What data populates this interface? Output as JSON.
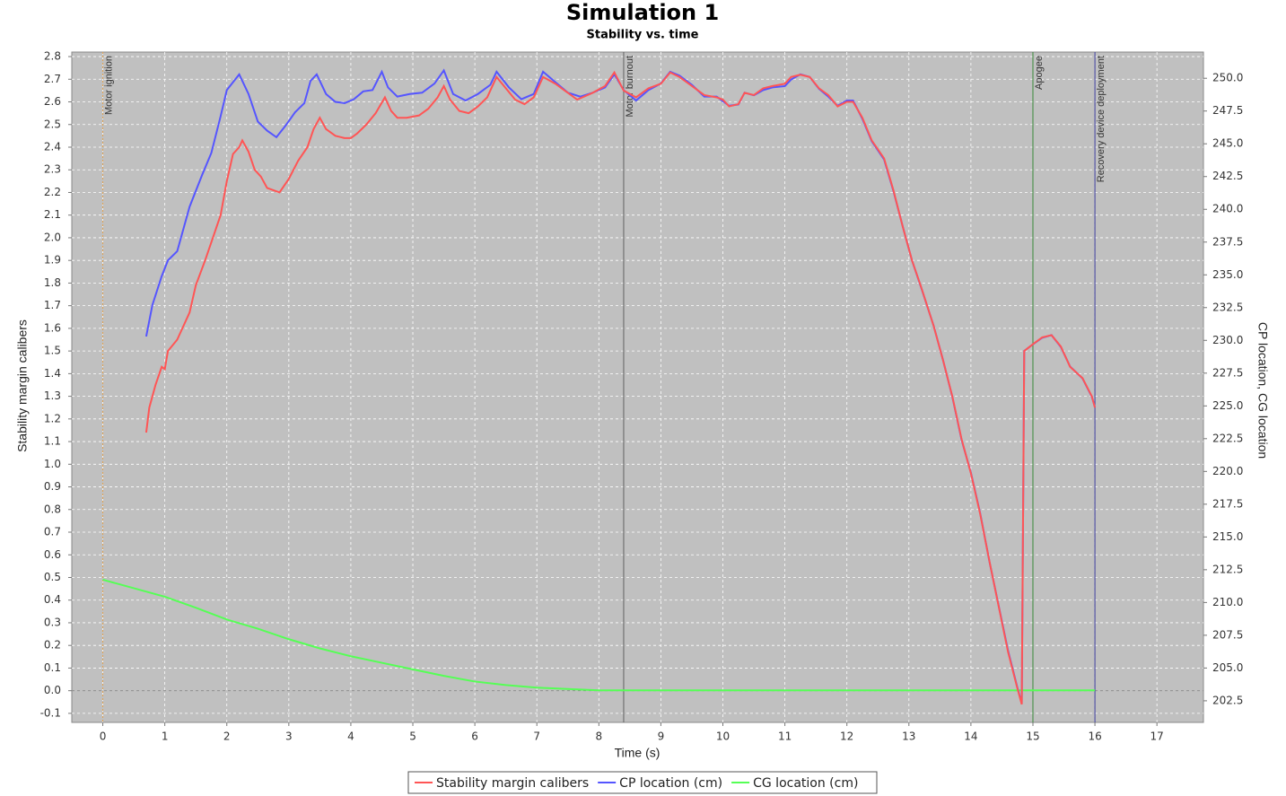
{
  "chart_data": {
    "type": "line",
    "title": "Simulation 1",
    "subtitle": "Stability vs. time",
    "x_label": "Time (s)",
    "y_label": "Stability margin calibers",
    "y2_label": "CP location, CG location",
    "xlim": [
      -0.5,
      17.75
    ],
    "xticks": [
      0,
      1,
      2,
      3,
      4,
      5,
      6,
      7,
      8,
      9,
      10,
      11,
      12,
      13,
      14,
      15,
      16,
      17
    ],
    "ylim": [
      -0.14,
      2.82
    ],
    "yticks": [
      -0.1,
      {
        "value": 0,
        "label": "0.0"
      },
      0.1,
      0.2,
      0.3,
      0.4,
      0.5,
      0.6,
      0.7,
      0.8,
      0.9,
      {
        "value": 1,
        "label": "1.0"
      },
      1.1,
      1.2,
      1.3,
      1.4,
      1.5,
      1.6,
      1.7,
      1.8,
      1.9,
      {
        "value": 2,
        "label": "2.0"
      },
      2.1,
      2.2,
      2.3,
      2.4,
      2.5,
      2.6,
      2.7,
      2.8
    ],
    "y2lim": [
      200.85,
      252.0
    ],
    "y2ticks": [
      202.5,
      {
        "value": 205,
        "label": "205.0"
      },
      207.5,
      {
        "value": 210,
        "label": "210.0"
      },
      212.5,
      {
        "value": 215,
        "label": "215.0"
      },
      217.5,
      {
        "value": 220,
        "label": "220.0"
      },
      222.5,
      {
        "value": 225,
        "label": "225.0"
      },
      227.5,
      {
        "value": 230,
        "label": "230.0"
      },
      232.5,
      {
        "value": 235,
        "label": "235.0"
      },
      237.5,
      {
        "value": 240,
        "label": "240.0"
      },
      242.5,
      {
        "value": 245,
        "label": "245.0"
      },
      247.5,
      {
        "value": 250,
        "label": "250.0"
      }
    ],
    "grid": true,
    "legend": "bottom",
    "series": [
      {
        "name": "Stability margin calibers",
        "color": "#ff5555",
        "x": [
          0.7,
          0.75,
          0.85,
          0.95,
          1.0,
          1.05,
          1.2,
          1.4,
          1.5,
          1.65,
          1.8,
          1.9,
          2.0,
          2.1,
          2.2,
          2.25,
          2.35,
          2.45,
          2.55,
          2.65,
          2.75,
          2.85,
          3.0,
          3.15,
          3.3,
          3.4,
          3.5,
          3.6,
          3.75,
          3.9,
          4.0,
          4.1,
          4.25,
          4.4,
          4.55,
          4.65,
          4.75,
          4.9,
          5.1,
          5.25,
          5.4,
          5.5,
          5.6,
          5.75,
          5.9,
          6.05,
          6.2,
          6.35,
          6.5,
          6.65,
          6.8,
          6.95,
          7.1,
          7.3,
          7.45,
          7.65,
          7.9,
          8.1,
          8.25,
          8.4,
          8.6,
          8.8,
          9.0,
          9.15,
          9.3,
          9.5,
          9.7,
          9.9,
          10.0,
          10.1,
          10.25,
          10.35,
          10.5,
          10.65,
          10.8,
          11.0,
          11.1,
          11.25,
          11.4,
          11.55,
          11.7,
          11.85,
          12.0,
          12.1,
          12.25,
          12.4,
          12.6,
          12.75,
          12.9,
          13.05,
          13.2,
          13.4,
          13.55,
          13.7,
          13.85,
          14.0,
          14.15,
          14.3,
          14.45,
          14.6,
          14.75,
          14.82,
          14.86,
          15.0,
          15.15,
          15.3,
          15.45,
          15.6,
          15.8,
          15.95,
          16.0
        ],
        "values": [
          1.14,
          1.25,
          1.35,
          1.43,
          1.42,
          1.5,
          1.55,
          1.67,
          1.79,
          1.9,
          2.02,
          2.1,
          2.25,
          2.37,
          2.4,
          2.43,
          2.38,
          2.3,
          2.27,
          2.22,
          2.21,
          2.2,
          2.26,
          2.34,
          2.4,
          2.48,
          2.53,
          2.48,
          2.45,
          2.44,
          2.44,
          2.46,
          2.5,
          2.55,
          2.62,
          2.56,
          2.53,
          2.53,
          2.54,
          2.57,
          2.62,
          2.67,
          2.61,
          2.56,
          2.55,
          2.58,
          2.62,
          2.71,
          2.66,
          2.61,
          2.59,
          2.62,
          2.71,
          2.68,
          2.65,
          2.61,
          2.64,
          2.67,
          2.73,
          2.65,
          2.62,
          2.66,
          2.68,
          2.73,
          2.71,
          2.67,
          2.63,
          2.62,
          2.61,
          2.58,
          2.59,
          2.64,
          2.63,
          2.66,
          2.67,
          2.68,
          2.71,
          2.72,
          2.71,
          2.66,
          2.63,
          2.58,
          2.6,
          2.6,
          2.53,
          2.43,
          2.35,
          2.21,
          2.05,
          1.9,
          1.78,
          1.61,
          1.46,
          1.3,
          1.11,
          0.96,
          0.78,
          0.57,
          0.37,
          0.17,
          0.01,
          -0.06,
          1.5,
          1.53,
          1.56,
          1.57,
          1.52,
          1.43,
          1.38,
          1.3,
          1.25
        ]
      },
      {
        "name": "CP location (cm)",
        "color": "#5555ff",
        "axis": "y2",
        "x": [
          0.7,
          0.8,
          0.95,
          1.05,
          1.2,
          1.4,
          1.6,
          1.75,
          1.9,
          2.0,
          2.1,
          2.2,
          2.35,
          2.5,
          2.65,
          2.8,
          2.95,
          3.1,
          3.25,
          3.35,
          3.45,
          3.6,
          3.75,
          3.9,
          4.05,
          4.2,
          4.35,
          4.5,
          4.6,
          4.75,
          4.95,
          5.15,
          5.35,
          5.5,
          5.65,
          5.85,
          6.05,
          6.25,
          6.35,
          6.55,
          6.75,
          6.95,
          7.1,
          7.3,
          7.5,
          7.7,
          7.9,
          8.1,
          8.25,
          8.4,
          8.6,
          8.8,
          9.0,
          9.15,
          9.3,
          9.5,
          9.7,
          9.9,
          10.1,
          10.25,
          10.35,
          10.5,
          10.65,
          10.8,
          11.0,
          11.1,
          11.25,
          11.4,
          11.55,
          11.7,
          11.85,
          12.0,
          12.1,
          12.25,
          12.4,
          12.6,
          12.75,
          12.9,
          13.05,
          13.2,
          13.4,
          13.55,
          13.7,
          13.85,
          14.0,
          14.15,
          14.3,
          14.45,
          14.6,
          14.75,
          14.82,
          14.86,
          15.0,
          15.15,
          15.3,
          15.45,
          15.6,
          15.8,
          15.95,
          16.0
        ],
        "values": [
          230.3,
          232.7,
          234.9,
          236.1,
          236.8,
          240.2,
          242.6,
          244.3,
          247.1,
          249.1,
          249.7,
          250.3,
          248.8,
          246.7,
          246.0,
          245.5,
          246.4,
          247.4,
          248.1,
          249.8,
          250.3,
          248.8,
          248.2,
          248.1,
          248.4,
          249.0,
          249.1,
          250.5,
          249.3,
          248.6,
          248.8,
          248.9,
          249.6,
          250.6,
          248.8,
          248.3,
          248.8,
          249.5,
          250.5,
          249.3,
          248.4,
          248.8,
          250.5,
          249.7,
          248.9,
          248.6,
          248.9,
          249.3,
          250.3,
          249.1,
          248.3,
          249.1,
          249.6,
          250.5,
          250.2,
          249.5,
          248.6,
          248.6,
          247.9,
          248.0,
          248.9,
          248.7,
          249.1,
          249.3,
          249.4,
          249.9,
          250.3,
          250.1,
          249.2,
          248.6,
          247.9,
          248.3,
          248.3,
          246.9,
          245.2,
          243.8,
          241.4,
          238.7,
          236.1,
          234.0,
          231.1,
          228.5,
          225.7,
          222.4,
          219.9,
          216.8,
          213.1,
          209.7,
          206.3,
          203.5,
          202.3,
          229.2,
          229.7,
          230.2,
          230.4,
          229.5,
          228.0,
          227.1,
          225.7,
          224.9
        ]
      },
      {
        "name": "CG location (cm)",
        "color": "#55ff55",
        "axis": "y2",
        "x": [
          0,
          1,
          1.5,
          2,
          2.5,
          3,
          3.5,
          4,
          4.5,
          5,
          5.5,
          6,
          6.5,
          7,
          7.5,
          8,
          12,
          16
        ],
        "values": [
          211.74,
          210.44,
          209.6,
          208.7,
          208.0,
          207.2,
          206.5,
          205.9,
          205.4,
          204.9,
          204.4,
          203.97,
          203.7,
          203.5,
          203.4,
          203.3,
          203.3,
          203.3
        ]
      }
    ],
    "events": [
      {
        "label": "Motor ignition",
        "x": 0,
        "color": "#e0a050"
      },
      {
        "label": "Motor burnout",
        "x": 8.4,
        "color": "#606060"
      },
      {
        "label": "Apogee",
        "x": 15.0,
        "color": "#3a8a3a"
      },
      {
        "label": "Recovery device deployment",
        "x": 16.0,
        "color": "#4040a0"
      }
    ]
  }
}
